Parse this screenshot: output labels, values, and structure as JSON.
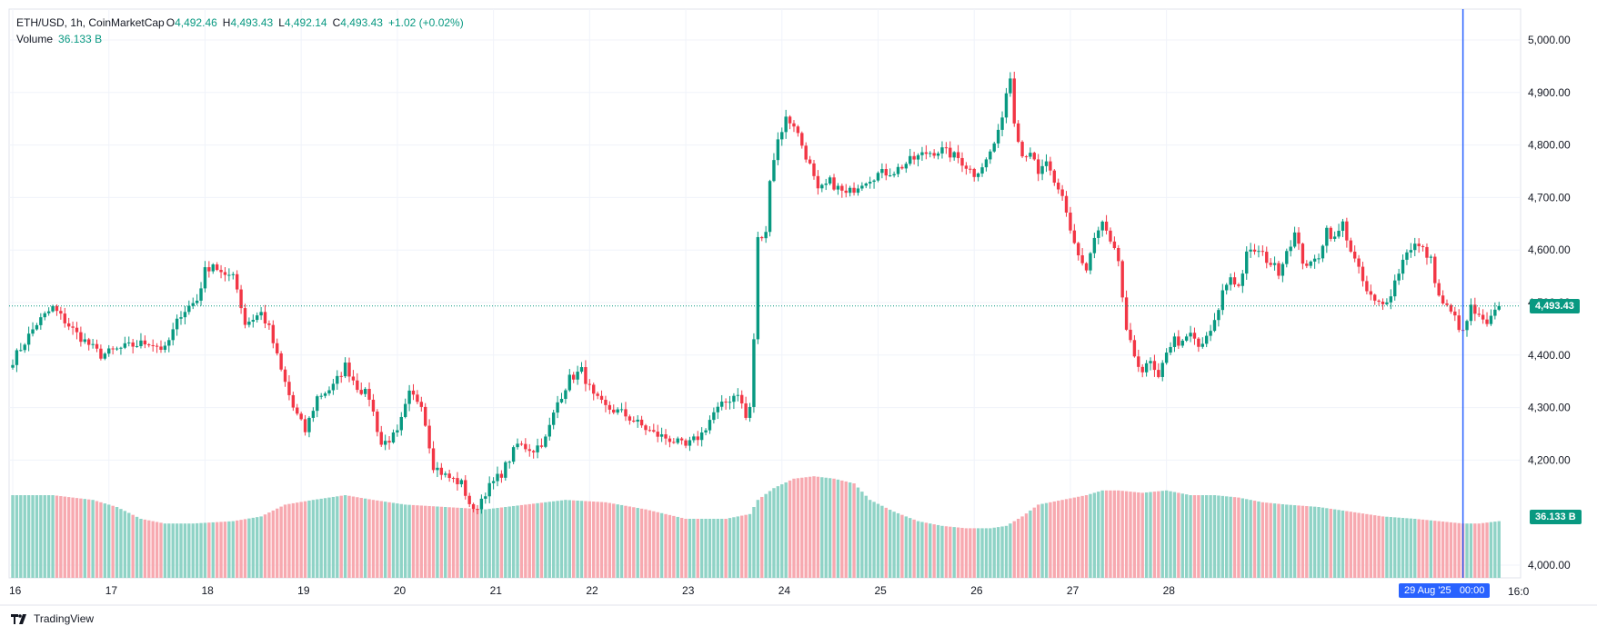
{
  "legend": {
    "symbol": "ETH/USD, 1h, CoinMarketCap",
    "open_label": "O",
    "open": "4,492.46",
    "high_label": "H",
    "high": "4,493.43",
    "low_label": "L",
    "low": "4,492.14",
    "close_label": "C",
    "close": "4,493.43",
    "change": "+1.02 (+0.02%)",
    "volume_label": "Volume",
    "volume": "36.133 B"
  },
  "price_badge": "4,493.43",
  "volume_badge": "36.133 B",
  "crosshair_label": "29 Aug '25   00:00",
  "after_label": "16:0",
  "logo_text": "TradingView",
  "colors": {
    "up": "#089981",
    "down": "#f23645",
    "vol_up": "#8fd3c6",
    "vol_down": "#f7a9b0",
    "crosshair": "#2962ff",
    "grid": "#f0f3fa"
  },
  "chart_data": {
    "type": "candlestick",
    "title": "ETH/USD, 1h, CoinMarketCap",
    "x_ticks": [
      "16",
      "17",
      "18",
      "19",
      "20",
      "21",
      "22",
      "23",
      "24",
      "25",
      "26",
      "27",
      "28"
    ],
    "y_ticks": [
      "5,000.00",
      "4,900.00",
      "4,800.00",
      "4,700.00",
      "4,600.00",
      "4,500.00",
      "4,400.00",
      "4,300.00",
      "4,200.00",
      "4,000.00"
    ],
    "y_tick_values": [
      5000,
      4900,
      4800,
      4700,
      4600,
      4500,
      4400,
      4300,
      4200,
      4000
    ],
    "ylim": [
      4000,
      5050
    ],
    "last_price": 4493.43,
    "close_path": [
      [
        0,
        4390
      ],
      [
        6,
        4460
      ],
      [
        10,
        4490
      ],
      [
        16,
        4440
      ],
      [
        22,
        4400
      ],
      [
        28,
        4415
      ],
      [
        34,
        4425
      ],
      [
        38,
        4410
      ],
      [
        42,
        4480
      ],
      [
        46,
        4505
      ],
      [
        48,
        4560
      ],
      [
        50,
        4575
      ],
      [
        53,
        4545
      ],
      [
        55,
        4560
      ],
      [
        58,
        4460
      ],
      [
        62,
        4480
      ],
      [
        64,
        4450
      ],
      [
        67,
        4370
      ],
      [
        70,
        4300
      ],
      [
        73,
        4255
      ],
      [
        76,
        4320
      ],
      [
        80,
        4340
      ],
      [
        83,
        4380
      ],
      [
        86,
        4340
      ],
      [
        89,
        4320
      ],
      [
        92,
        4230
      ],
      [
        96,
        4250
      ],
      [
        99,
        4325
      ],
      [
        102,
        4310
      ],
      [
        105,
        4190
      ],
      [
        108,
        4170
      ],
      [
        112,
        4155
      ],
      [
        115,
        4100
      ],
      [
        118,
        4140
      ],
      [
        122,
        4175
      ],
      [
        126,
        4230
      ],
      [
        130,
        4220
      ],
      [
        133,
        4240
      ],
      [
        136,
        4310
      ],
      [
        139,
        4355
      ],
      [
        142,
        4370
      ],
      [
        145,
        4320
      ],
      [
        148,
        4300
      ],
      [
        152,
        4290
      ],
      [
        156,
        4270
      ],
      [
        160,
        4250
      ],
      [
        164,
        4240
      ],
      [
        168,
        4225
      ],
      [
        172,
        4250
      ],
      [
        175,
        4290
      ],
      [
        178,
        4310
      ],
      [
        181,
        4330
      ],
      [
        183,
        4280
      ],
      [
        184,
        4300
      ],
      [
        185,
        4430
      ],
      [
        186,
        4620
      ],
      [
        188,
        4630
      ],
      [
        189,
        4740
      ],
      [
        191,
        4810
      ],
      [
        193,
        4850
      ],
      [
        195,
        4840
      ],
      [
        197,
        4800
      ],
      [
        199,
        4760
      ],
      [
        201,
        4710
      ],
      [
        204,
        4730
      ],
      [
        208,
        4705
      ],
      [
        212,
        4730
      ],
      [
        216,
        4745
      ],
      [
        220,
        4750
      ],
      [
        224,
        4770
      ],
      [
        228,
        4785
      ],
      [
        232,
        4790
      ],
      [
        236,
        4775
      ],
      [
        240,
        4745
      ],
      [
        243,
        4770
      ],
      [
        246,
        4820
      ],
      [
        248,
        4900
      ],
      [
        249,
        4930
      ],
      [
        250,
        4850
      ],
      [
        252,
        4780
      ],
      [
        254,
        4790
      ],
      [
        256,
        4740
      ],
      [
        258,
        4770
      ],
      [
        260,
        4720
      ],
      [
        262,
        4700
      ],
      [
        264,
        4640
      ],
      [
        266,
        4590
      ],
      [
        268,
        4560
      ],
      [
        270,
        4620
      ],
      [
        272,
        4650
      ],
      [
        274,
        4610
      ],
      [
        276,
        4580
      ],
      [
        278,
        4440
      ],
      [
        280,
        4400
      ],
      [
        282,
        4370
      ],
      [
        284,
        4385
      ],
      [
        286,
        4350
      ],
      [
        288,
        4410
      ],
      [
        290,
        4430
      ],
      [
        292,
        4420
      ],
      [
        294,
        4440
      ],
      [
        296,
        4415
      ],
      [
        298,
        4430
      ],
      [
        300,
        4460
      ],
      [
        302,
        4520
      ],
      [
        304,
        4550
      ],
      [
        306,
        4530
      ],
      [
        308,
        4590
      ],
      [
        310,
        4600
      ],
      [
        312,
        4590
      ],
      [
        314,
        4575
      ],
      [
        316,
        4560
      ],
      [
        318,
        4600
      ],
      [
        320,
        4630
      ],
      [
        322,
        4580
      ],
      [
        324,
        4570
      ],
      [
        326,
        4590
      ],
      [
        328,
        4640
      ],
      [
        330,
        4620
      ],
      [
        332,
        4650
      ],
      [
        334,
        4600
      ],
      [
        336,
        4560
      ],
      [
        338,
        4520
      ],
      [
        340,
        4500
      ],
      [
        342,
        4495
      ],
      [
        344,
        4520
      ],
      [
        346,
        4560
      ],
      [
        348,
        4600
      ],
      [
        350,
        4610
      ],
      [
        352,
        4600
      ],
      [
        354,
        4580
      ],
      [
        356,
        4510
      ],
      [
        358,
        4490
      ],
      [
        360,
        4470
      ],
      [
        362,
        4440
      ],
      [
        364,
        4490
      ],
      [
        366,
        4470
      ],
      [
        368,
        4455
      ],
      [
        370,
        4480
      ],
      [
        371,
        4493
      ]
    ],
    "volume_ylim": [
      0,
      45
    ],
    "volume_path": [
      [
        0,
        35
      ],
      [
        10,
        35
      ],
      [
        20,
        33
      ],
      [
        26,
        30
      ],
      [
        32,
        25
      ],
      [
        38,
        23
      ],
      [
        45,
        23
      ],
      [
        55,
        24
      ],
      [
        62,
        26
      ],
      [
        68,
        31
      ],
      [
        75,
        33
      ],
      [
        83,
        35
      ],
      [
        90,
        33
      ],
      [
        98,
        31
      ],
      [
        108,
        30
      ],
      [
        118,
        29
      ],
      [
        128,
        31
      ],
      [
        138,
        33
      ],
      [
        148,
        32
      ],
      [
        158,
        29
      ],
      [
        168,
        25
      ],
      [
        178,
        25
      ],
      [
        184,
        27
      ],
      [
        186,
        33
      ],
      [
        190,
        38
      ],
      [
        195,
        42
      ],
      [
        200,
        43
      ],
      [
        205,
        42
      ],
      [
        210,
        40
      ],
      [
        214,
        33
      ],
      [
        220,
        28
      ],
      [
        226,
        24
      ],
      [
        232,
        22
      ],
      [
        238,
        21
      ],
      [
        244,
        21
      ],
      [
        248,
        22
      ],
      [
        252,
        26
      ],
      [
        256,
        31
      ],
      [
        262,
        33
      ],
      [
        268,
        35
      ],
      [
        272,
        37
      ],
      [
        276,
        37
      ],
      [
        282,
        36
      ],
      [
        288,
        37
      ],
      [
        294,
        35
      ],
      [
        300,
        35
      ],
      [
        306,
        34
      ],
      [
        312,
        32
      ],
      [
        318,
        31
      ],
      [
        326,
        30
      ],
      [
        334,
        28
      ],
      [
        342,
        26
      ],
      [
        350,
        25
      ],
      [
        356,
        24
      ],
      [
        362,
        23
      ],
      [
        366,
        23
      ],
      [
        371,
        24
      ]
    ],
    "crosshair_bar": 362
  }
}
